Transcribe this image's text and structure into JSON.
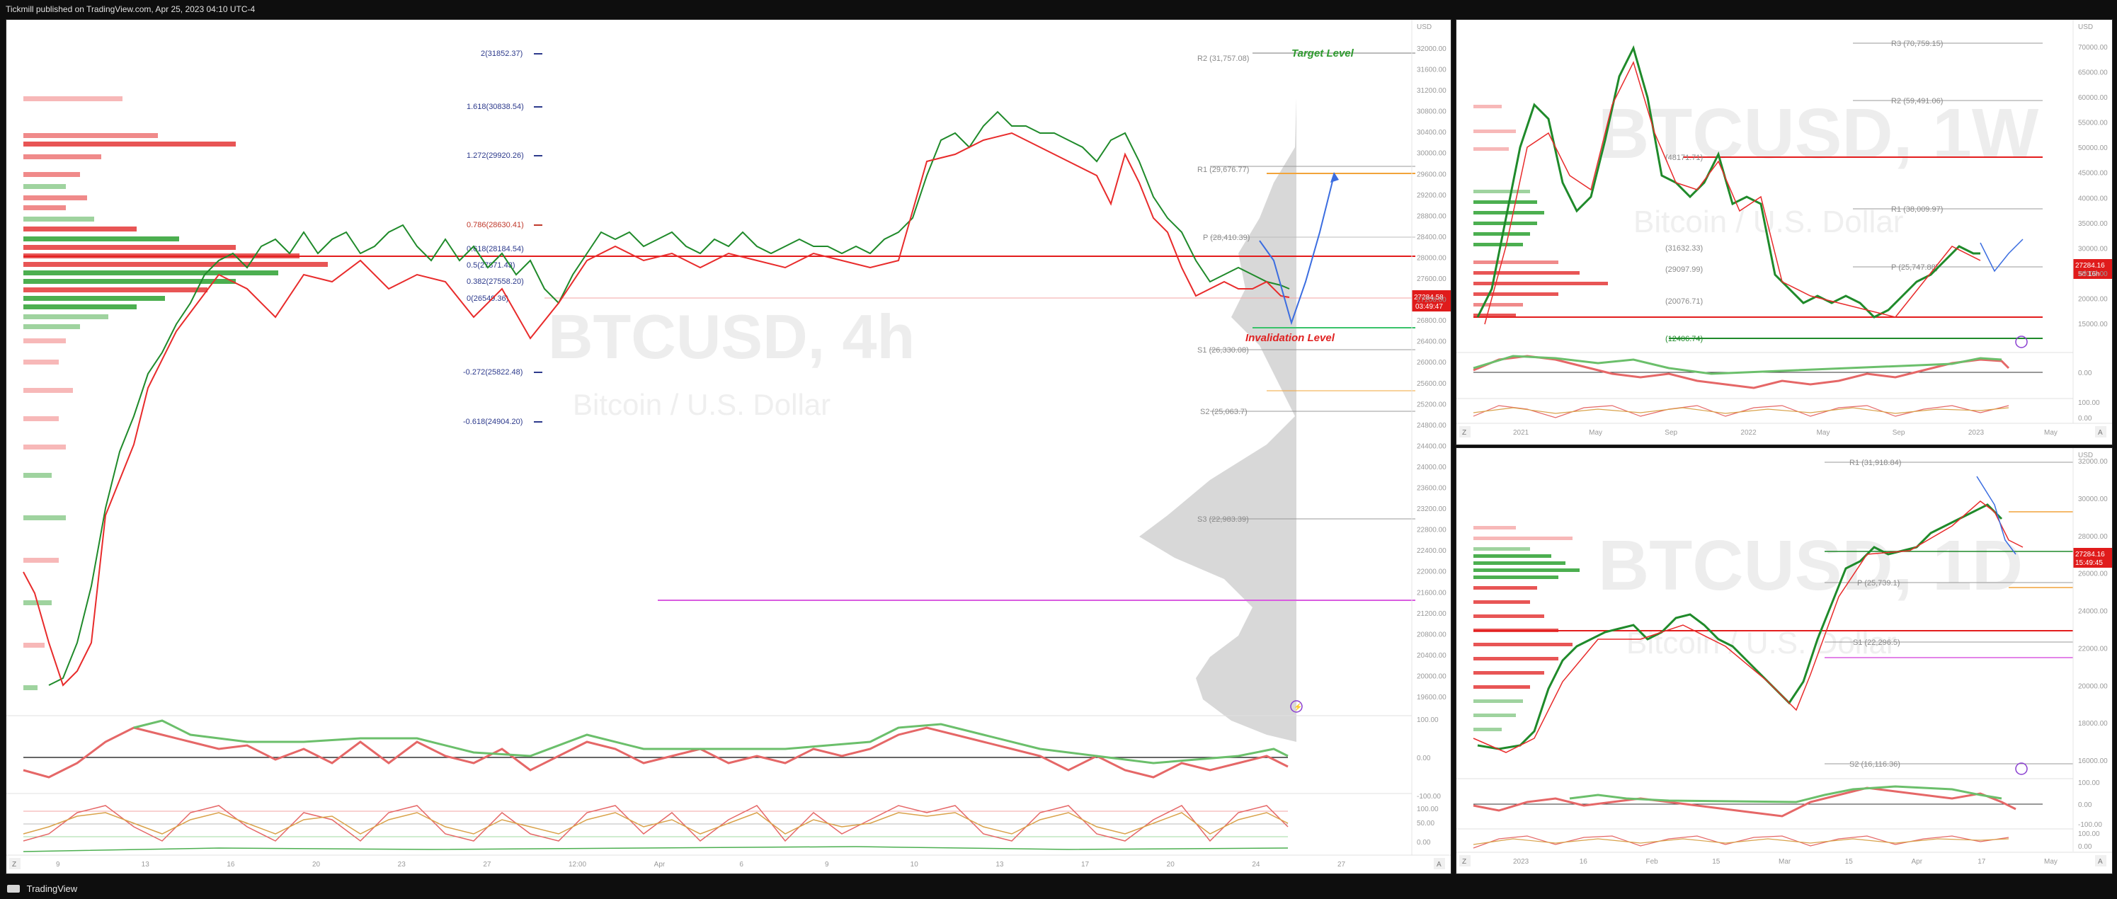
{
  "header": {
    "publisher": "Tickmill published on TradingView.com, Apr 25, 2023 04:10 UTC-4"
  },
  "footer": {
    "brand": "TradingView"
  },
  "colors": {
    "up": "#1f8a2a",
    "down": "#e82b2b",
    "fib": "#2d3a8c",
    "target": "#2e9a2e",
    "invalid": "#e02222",
    "projection": "#3b6de0",
    "magenta": "#d95ce0",
    "orange": "#f2a43a"
  },
  "main": {
    "symbol": "BTCUSD, 4h",
    "name": "Bitcoin / U.S. Dollar",
    "currency": "USD",
    "target_label": "Target Level",
    "invalidation_label": "Invalidation Level",
    "fib_levels": [
      "2(31852.37)",
      "1.618(30838.54)",
      "1.272(29920.26)",
      "0.786(28630.41)",
      "0.618(28184.54)",
      "0.5(27871.43)",
      "0.382(27558.20)",
      "0(26549.36)",
      "-0.272(25822.48)",
      "-0.618(24904.20)"
    ],
    "pivots": [
      "R2 (31,757.08)",
      "R1 (29,676.77)",
      "P (28,410.39)",
      "S1 (26,330.08)",
      "S2 (25,063.7)",
      "S3 (22,983.39)"
    ],
    "price": "27284.58",
    "countdown": "03:49:47",
    "price_axis": [
      "32000.00",
      "31600.00",
      "31200.00",
      "30800.00",
      "30400.00",
      "30000.00",
      "29600.00",
      "29200.00",
      "28800.00",
      "28400.00",
      "28000.00",
      "27600.00",
      "27200.00",
      "26800.00",
      "26400.00",
      "26000.00",
      "25600.00",
      "25200.00",
      "24800.00",
      "24400.00",
      "24000.00",
      "23600.00",
      "23200.00",
      "22800.00",
      "22400.00",
      "22000.00",
      "21600.00",
      "21200.00",
      "20800.00",
      "20400.00",
      "20000.00",
      "19600.00"
    ],
    "time_axis": [
      "9",
      "13",
      "16",
      "20",
      "23",
      "27",
      "12:00",
      "Apr",
      "6",
      "9",
      "10",
      "13",
      "17",
      "20",
      "24",
      "27"
    ],
    "osc_axis": [
      "100.00",
      "0.00",
      "-100.00",
      "100.00",
      "50.00",
      "0.00"
    ]
  },
  "weekly": {
    "symbol": "BTCUSD, 1W",
    "name": "Bitcoin / U.S. Dollar",
    "currency": "USD",
    "price": "27284.16",
    "countdown": "5d 16h",
    "pivots": [
      "R3 (70,759.15)",
      "R2 (59,491.06)",
      "R1 (38,009.97)",
      "P (25,747.88)",
      "(48171.71)",
      "(31632.33)",
      "(29097.99)",
      "(20076.71)",
      "(12406.74)"
    ],
    "price_axis": [
      "70000.00",
      "65000.00",
      "60000.00",
      "55000.00",
      "50000.00",
      "45000.00",
      "40000.00",
      "35000.00",
      "30000.00",
      "25000.00",
      "20000.00",
      "15000.00"
    ],
    "time_axis": [
      "2021",
      "May",
      "Sep",
      "2022",
      "May",
      "Sep",
      "2023",
      "May"
    ],
    "osc_axis": [
      "0.00",
      "100.00",
      "0.00"
    ]
  },
  "daily": {
    "symbol": "BTCUSD, 1D",
    "name": "Bitcoin / U.S. Dollar",
    "currency": "USD",
    "price": "27284.16",
    "countdown": "15:49:45",
    "pivots": [
      "R1 (31,918.84)",
      "P (25,739.1)",
      "S1 (22,296.5)",
      "S2 (16,116.36)"
    ],
    "price_axis": [
      "32000.00",
      "30000.00",
      "28000.00",
      "26000.00",
      "24000.00",
      "22000.00",
      "20000.00",
      "18000.00",
      "16000.00"
    ],
    "time_axis": [
      "2023",
      "16",
      "Feb",
      "15",
      "Mar",
      "15",
      "Apr",
      "17",
      "May"
    ],
    "osc_axis": [
      "100.00",
      "0.00",
      "-100.00",
      "100.00",
      "0.00"
    ]
  }
}
